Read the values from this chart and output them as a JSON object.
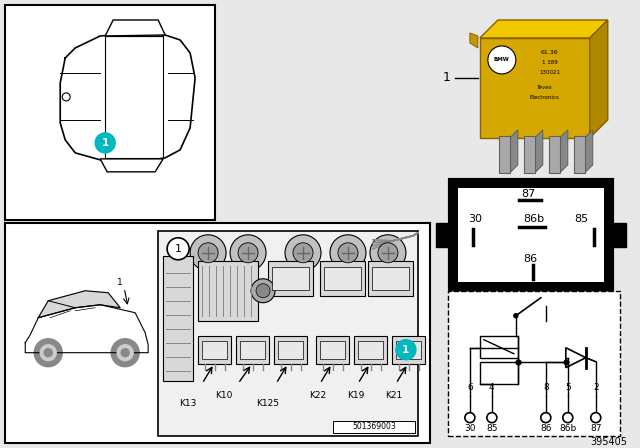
{
  "bg_color": "#e8e8e8",
  "white": "#ffffff",
  "black": "#000000",
  "teal": "#00b8c0",
  "light_gray": "#cccccc",
  "mid_gray": "#aaaaaa",
  "dark_gray": "#666666",
  "relay_yellow": "#d4a800",
  "relay_yellow_top": "#e8c000",
  "relay_yellow_side": "#b89000",
  "part_number": "395405",
  "fuse_number": "501369003",
  "pin_labels": [
    "87",
    "30",
    "86b",
    "85",
    "86"
  ],
  "term_nums": [
    "6",
    "4",
    "8",
    "5",
    "2"
  ],
  "term_labels": [
    "30",
    "85",
    "86",
    "86b",
    "87"
  ],
  "relay_labels": [
    "K13",
    "K10",
    "K125",
    "K22",
    "K19",
    "K21"
  ]
}
